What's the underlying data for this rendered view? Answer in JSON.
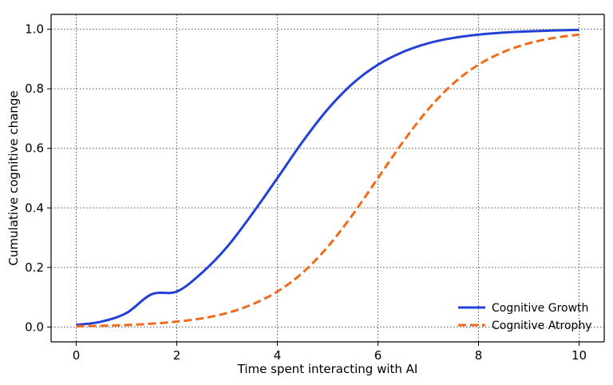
{
  "chart_data": {
    "type": "line",
    "title": "",
    "xlabel": "Time spent interacting with AI",
    "ylabel": "Cumulative cognitive change",
    "xlim": [
      -0.5,
      10.5
    ],
    "ylim": [
      -0.05,
      1.05
    ],
    "x_ticks": [
      0,
      2,
      4,
      6,
      8,
      10
    ],
    "y_ticks": [
      0.0,
      0.2,
      0.4,
      0.6,
      0.8,
      1.0
    ],
    "x_tick_labels": [
      "0",
      "2",
      "4",
      "6",
      "8",
      "10"
    ],
    "y_tick_labels": [
      "0.0",
      "0.2",
      "0.4",
      "0.6",
      "0.8",
      "1.0"
    ],
    "grid": true,
    "legend_position": "bottom-right",
    "x": [
      0,
      0.5,
      1,
      1.5,
      2,
      2.5,
      3,
      3.5,
      4,
      4.5,
      5,
      5.5,
      6,
      6.5,
      7,
      7.5,
      8,
      8.5,
      9,
      9.5,
      10
    ],
    "series": [
      {
        "name": "Cognitive Growth",
        "color": "#2340d8",
        "line_style": "solid",
        "values": [
          0.007,
          0.018,
          0.047,
          0.11,
          0.119,
          0.182,
          0.269,
          0.38,
          0.5,
          0.622,
          0.731,
          0.818,
          0.881,
          0.924,
          0.953,
          0.971,
          0.982,
          0.989,
          0.993,
          0.996,
          0.998
        ]
      },
      {
        "name": "Cognitive Atrophy",
        "color": "#f26a1b",
        "line_style": "dashed",
        "values": [
          0.0025,
          0.0041,
          0.0067,
          0.011,
          0.018,
          0.029,
          0.047,
          0.076,
          0.119,
          0.182,
          0.269,
          0.378,
          0.5,
          0.622,
          0.731,
          0.818,
          0.881,
          0.924,
          0.953,
          0.971,
          0.982
        ]
      }
    ]
  }
}
